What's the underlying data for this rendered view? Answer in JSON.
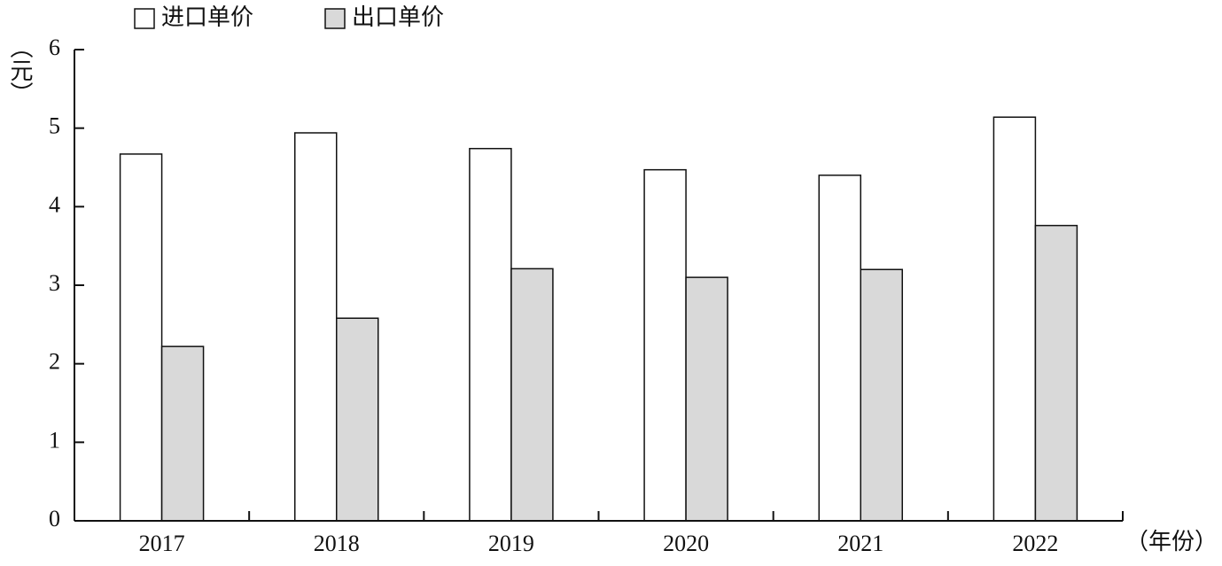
{
  "chart_data": {
    "type": "bar",
    "x_label": "（年份）",
    "y_label": "（元）",
    "categories": [
      "2017",
      "2018",
      "2019",
      "2020",
      "2021",
      "2022"
    ],
    "series": [
      {
        "name": "进口单价",
        "color": "#ffffff",
        "values": [
          4.67,
          4.94,
          4.74,
          4.47,
          4.4,
          5.14
        ]
      },
      {
        "name": "出口单价",
        "color": "#d9d9d9",
        "values": [
          2.22,
          2.58,
          3.21,
          3.1,
          3.2,
          3.76
        ]
      }
    ],
    "ylim": [
      0,
      6
    ],
    "yticks": [
      0,
      1,
      2,
      3,
      4,
      5,
      6
    ]
  }
}
